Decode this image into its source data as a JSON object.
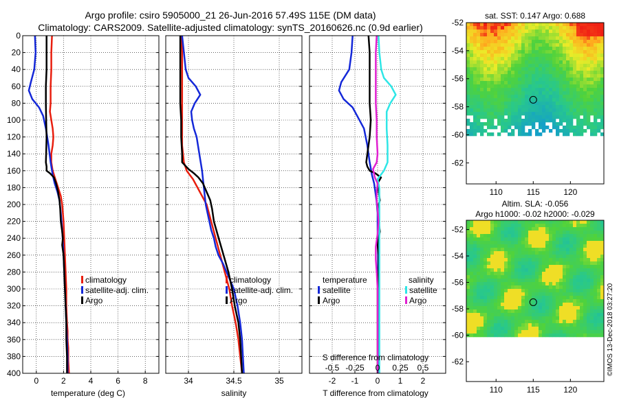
{
  "header": {
    "title_line1": "Argo profile: csiro 5905000_21 26-Jun-2016 57.49S 115E (DM data)",
    "title_line2": "Climatology: CARS2009. Satellite-adjusted climatology: synTS_20160626.nc (0.9d earlier)"
  },
  "colors": {
    "climatology": "#e81e0e",
    "satellite": "#1428d8",
    "argo": "#000000",
    "satellite_salinity": "#2ee6e6",
    "argo_salinity": "#e020d0"
  },
  "chart_data": [
    {
      "id": "temperature",
      "type": "line",
      "xlabel": "temperature (deg C)",
      "xlim": [
        -1,
        9
      ],
      "xticks": [
        "0",
        "2",
        "4",
        "6",
        "8"
      ],
      "ylim": [
        400,
        0
      ],
      "yticks": [
        "0",
        "20",
        "40",
        "60",
        "80",
        "100",
        "120",
        "140",
        "160",
        "180",
        "200",
        "220",
        "240",
        "260",
        "280",
        "300",
        "320",
        "340",
        "360",
        "380",
        "400"
      ],
      "legend": [
        "climatology",
        "satellite-adj. clim.",
        "Argo"
      ],
      "series": [
        {
          "name": "climatology",
          "x": [
            1.15,
            1.1,
            1.1,
            1.05,
            1.05,
            1.0,
            1.1,
            1.2,
            1.25,
            1.2,
            1.1,
            1.1,
            1.2,
            1.4,
            1.6,
            1.8,
            1.9,
            2.0,
            2.05,
            2.1,
            2.15,
            2.2,
            2.2,
            2.25,
            2.3,
            2.3,
            2.35,
            2.35,
            2.4
          ],
          "y": [
            0,
            20,
            40,
            60,
            80,
            90,
            100,
            110,
            120,
            130,
            140,
            150,
            160,
            170,
            180,
            190,
            200,
            220,
            240,
            260,
            280,
            300,
            320,
            340,
            350,
            360,
            370,
            385,
            400
          ]
        },
        {
          "name": "satellite-adj. clim.",
          "x": [
            -0.1,
            -0.05,
            -0.15,
            -0.4,
            -0.55,
            -0.3,
            0.2,
            0.5,
            0.7,
            0.9,
            1.05,
            1.2,
            1.35,
            1.55,
            1.7,
            1.8,
            1.9,
            2.0,
            2.05,
            2.1,
            2.15,
            2.2,
            2.25,
            2.3,
            2.3
          ],
          "y": [
            0,
            20,
            40,
            55,
            65,
            75,
            85,
            95,
            110,
            130,
            150,
            165,
            175,
            185,
            195,
            210,
            230,
            260,
            280,
            300,
            320,
            340,
            360,
            380,
            400
          ]
        },
        {
          "name": "Argo",
          "x": [
            0.75,
            0.75,
            0.75,
            0.7,
            0.7,
            0.72,
            0.75,
            0.72,
            0.7,
            0.75,
            0.75,
            1.0,
            1.3,
            1.45,
            1.6,
            1.7,
            1.75,
            1.8,
            1.9,
            1.95,
            1.9,
            2.0,
            2.05,
            2.1,
            2.15,
            2.2,
            2.2,
            2.25,
            2.25
          ],
          "y": [
            0,
            20,
            40,
            60,
            80,
            100,
            120,
            140,
            150,
            155,
            160,
            163,
            168,
            175,
            185,
            195,
            205,
            220,
            232,
            240,
            248,
            260,
            280,
            300,
            320,
            340,
            360,
            380,
            400
          ]
        }
      ]
    },
    {
      "id": "salinity",
      "type": "line",
      "xlabel": "salinity",
      "xlim": [
        33.75,
        35.25
      ],
      "xticks": [
        "34",
        "34.5",
        "35"
      ],
      "ylim": [
        400,
        0
      ],
      "legend": [
        "climatology",
        "satellite-adj. clim.",
        "Argo"
      ],
      "series": [
        {
          "name": "climatology",
          "x": [
            33.92,
            33.93,
            33.93,
            33.93,
            33.93,
            33.93,
            33.93,
            33.93,
            33.94,
            33.95,
            33.98,
            34.05,
            34.1,
            34.15,
            34.2,
            34.25,
            34.3,
            34.35,
            34.4,
            34.45,
            34.48,
            34.52,
            34.55,
            34.57,
            34.58,
            34.59
          ],
          "y": [
            0,
            20,
            40,
            60,
            80,
            100,
            120,
            130,
            140,
            150,
            160,
            170,
            180,
            190,
            200,
            220,
            240,
            260,
            280,
            300,
            320,
            340,
            360,
            380,
            390,
            400
          ]
        },
        {
          "name": "satellite-adj. clim.",
          "x": [
            33.93,
            33.95,
            33.97,
            34.0,
            34.08,
            34.13,
            34.07,
            34.03,
            34.04,
            34.06,
            34.09,
            34.12,
            34.15,
            34.17,
            34.19,
            34.21,
            34.23,
            34.25,
            34.28,
            34.3,
            34.33,
            34.38,
            34.42,
            34.46,
            34.5,
            34.54,
            34.57,
            34.59,
            34.61
          ],
          "y": [
            0,
            20,
            40,
            50,
            60,
            70,
            80,
            90,
            100,
            110,
            120,
            140,
            160,
            180,
            200,
            210,
            220,
            230,
            240,
            250,
            260,
            270,
            280,
            290,
            300,
            320,
            340,
            360,
            400
          ]
        },
        {
          "name": "Argo",
          "x": [
            33.91,
            33.91,
            33.91,
            33.91,
            33.91,
            33.92,
            33.92,
            33.93,
            33.93,
            34.0,
            34.06,
            34.11,
            34.16,
            34.2,
            34.24,
            34.26,
            34.28,
            34.32,
            34.36,
            34.4,
            34.44,
            34.48,
            34.51,
            34.55,
            34.57,
            34.58,
            34.59
          ],
          "y": [
            0,
            20,
            40,
            60,
            80,
            100,
            120,
            140,
            150,
            158,
            163,
            168,
            175,
            185,
            195,
            205,
            220,
            235,
            250,
            265,
            280,
            300,
            320,
            340,
            360,
            380,
            400
          ]
        }
      ]
    },
    {
      "id": "difference",
      "type": "line",
      "xlabel": "T difference from climatology",
      "xlim": [
        -3,
        3
      ],
      "xticks": [
        "-2",
        "-1",
        "0",
        "1",
        "2"
      ],
      "top_axis_title": "S difference from climatology",
      "top_axis_ticks": [
        "-0.5",
        "-0.25",
        "0",
        "0.25",
        "0.5"
      ],
      "top_axis_lim": [
        -0.75,
        0.75
      ],
      "ylim": [
        400,
        0
      ],
      "legend_temperature_title": "temperature",
      "legend_salinity_title": "salinity",
      "legend_temperature": [
        "satellite",
        "Argo"
      ],
      "legend_salinity": [
        "satellite",
        "Argo"
      ],
      "series": [
        {
          "name": "temperature satellite",
          "x": [
            -1.1,
            -1.15,
            -1.25,
            -1.6,
            -1.7,
            -1.5,
            -1.1,
            -0.9,
            -0.6,
            -0.45,
            -0.35,
            -0.25,
            -0.15,
            -0.1,
            -0.05,
            0.0,
            0.0,
            0.02,
            0.02,
            0.03,
            0.04,
            0.05,
            0.05,
            0.05,
            0.05
          ],
          "y": [
            0,
            20,
            40,
            55,
            65,
            75,
            85,
            95,
            110,
            130,
            150,
            165,
            175,
            185,
            195,
            210,
            230,
            260,
            280,
            300,
            320,
            340,
            360,
            380,
            400
          ]
        },
        {
          "name": "temperature Argo",
          "x": [
            -0.4,
            -0.35,
            -0.35,
            -0.35,
            -0.35,
            -0.3,
            -0.35,
            -0.45,
            -0.5,
            -0.45,
            -0.35,
            -0.1,
            0.15,
            0.0,
            0.05,
            0.1,
            0.0,
            0.05,
            0.1,
            0.05,
            0.0,
            0.05,
            0.05,
            0.0,
            0.0,
            0.0,
            0.0,
            0.0
          ],
          "y": [
            0,
            20,
            40,
            60,
            80,
            100,
            120,
            140,
            150,
            155,
            160,
            163,
            168,
            175,
            185,
            195,
            205,
            220,
            232,
            240,
            248,
            260,
            280,
            300,
            320,
            340,
            360,
            400
          ]
        },
        {
          "name": "salinity satellite",
          "x": [
            0.01,
            0.02,
            0.04,
            0.07,
            0.15,
            0.2,
            0.14,
            0.1,
            0.1,
            0.11,
            0.11,
            0.07,
            0.0,
            0.02,
            0.02,
            0.02,
            0.02,
            0.02,
            0.02,
            0.02,
            0.02,
            0.02,
            0.02,
            0.02
          ],
          "y": [
            0,
            20,
            40,
            50,
            60,
            70,
            80,
            90,
            110,
            130,
            150,
            160,
            170,
            180,
            200,
            220,
            240,
            260,
            280,
            300,
            320,
            340,
            360,
            400
          ]
        },
        {
          "name": "salinity Argo",
          "x": [
            -0.01,
            -0.02,
            -0.02,
            -0.02,
            -0.02,
            -0.01,
            -0.01,
            0.0,
            -0.01,
            -0.05,
            -0.04,
            -0.03,
            0.0,
            -0.01,
            -0.01,
            0.0,
            0.01,
            0.0,
            -0.02,
            -0.02,
            -0.01,
            0.0,
            0.0,
            0.0,
            0.0,
            0.0
          ],
          "y": [
            0,
            20,
            40,
            60,
            80,
            100,
            120,
            140,
            150,
            158,
            163,
            168,
            175,
            185,
            195,
            205,
            220,
            235,
            250,
            265,
            280,
            300,
            320,
            340,
            360,
            400
          ]
        }
      ]
    },
    {
      "id": "sst_map",
      "type": "heatmap",
      "title": "sat. SST: 0.147 Argo: 0.688",
      "xlim": [
        106,
        124.5
      ],
      "xticks": [
        "110",
        "115",
        "120"
      ],
      "ylim": [
        -52,
        -63.5
      ],
      "yticks": [
        "-52",
        "-54",
        "-56",
        "-58",
        "-60",
        "-62"
      ],
      "argo_position": {
        "lon": 115,
        "lat": -57.5
      }
    },
    {
      "id": "sla_map",
      "type": "heatmap",
      "title_line1": "Altim. SLA: -0.056",
      "title_line2": "Argo h1000: -0.02 h2000: -0.029",
      "xlim": [
        106,
        124.5
      ],
      "xticks": [
        "110",
        "115",
        "120"
      ],
      "ylim": [
        -51.3,
        -63.5
      ],
      "yticks": [
        "-52",
        "-54",
        "-56",
        "-58",
        "-60",
        "-62"
      ],
      "argo_position": {
        "lon": 115,
        "lat": -57.5
      }
    }
  ],
  "footer": {
    "stamp": "©IMOS 13-Dec-2018 03:27:20"
  }
}
